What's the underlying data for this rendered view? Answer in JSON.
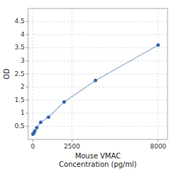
{
  "chart_data": {
    "type": "line",
    "x": [
      0,
      62.5,
      125,
      250,
      500,
      1000,
      2000,
      4000,
      8000
    ],
    "values": [
      0.2,
      0.25,
      0.32,
      0.45,
      0.65,
      0.85,
      1.43,
      2.25,
      3.6
    ],
    "xlabel": "Mouse VMAC\nConcentration (pg/ml)",
    "ylabel": "OD",
    "xlim": [
      -300,
      8600
    ],
    "ylim": [
      0.0,
      5.0
    ],
    "xticks": [
      0,
      2500,
      8000
    ],
    "yticks": [
      0.5,
      1.0,
      1.5,
      2.0,
      2.5,
      3.0,
      3.5,
      4.0,
      4.5
    ],
    "color": "#3366aa",
    "marker": "circle",
    "grid": true
  }
}
